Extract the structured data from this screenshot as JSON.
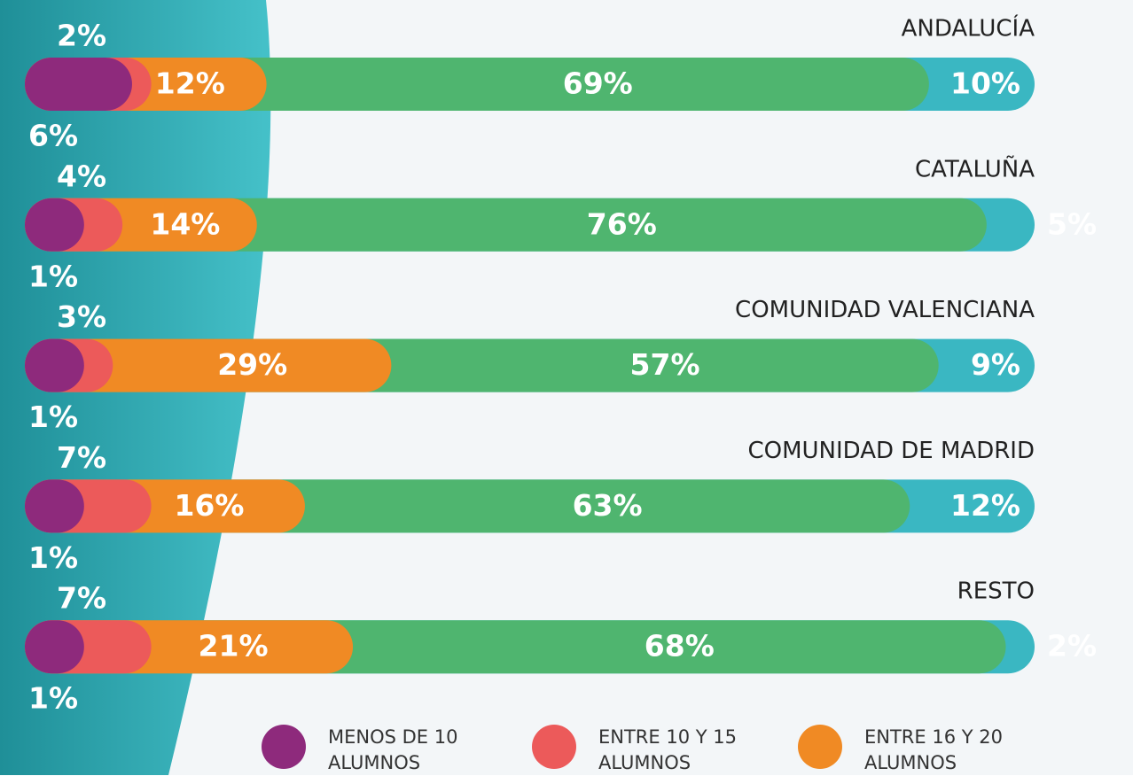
{
  "chart_data": {
    "type": "stacked-bar-horizontal",
    "categories": [
      "ANDALUCÍA",
      "CATALUÑA",
      "COMUNIDAD VALENCIANA",
      "COMUNIDAD DE MADRID",
      "RESTO"
    ],
    "series": [
      {
        "name": "MENOS DE 10 ALUMNOS",
        "color": "#8e2a7c",
        "values": [
          6,
          1,
          1,
          1,
          1
        ],
        "value_labels": [
          "6%",
          "1%",
          "1%",
          "1%",
          "1%"
        ]
      },
      {
        "name": "ENTRE 10 Y 15 ALUMNOS",
        "color": "#ec5a5a",
        "values": [
          2,
          4,
          3,
          7,
          7
        ],
        "value_labels": [
          "2%",
          "4%",
          "3%",
          "7%",
          "7%"
        ]
      },
      {
        "name": "ENTRE 16 Y 20 ALUMNOS",
        "color": "#f08a24",
        "values": [
          12,
          14,
          29,
          16,
          21
        ],
        "value_labels": [
          "12%",
          "14%",
          "29%",
          "16%",
          "21%"
        ]
      },
      {
        "color": "#4fb56f",
        "values": [
          69,
          76,
          57,
          63,
          68
        ],
        "value_labels": [
          "69%",
          "76%",
          "57%",
          "63%",
          "68%"
        ]
      },
      {
        "color": "#3ab7c2",
        "values": [
          10,
          5,
          9,
          12,
          2
        ],
        "value_labels": [
          "10%",
          "5%",
          "9%",
          "12%",
          "2%"
        ]
      }
    ],
    "xlim": [
      0,
      100
    ]
  }
}
